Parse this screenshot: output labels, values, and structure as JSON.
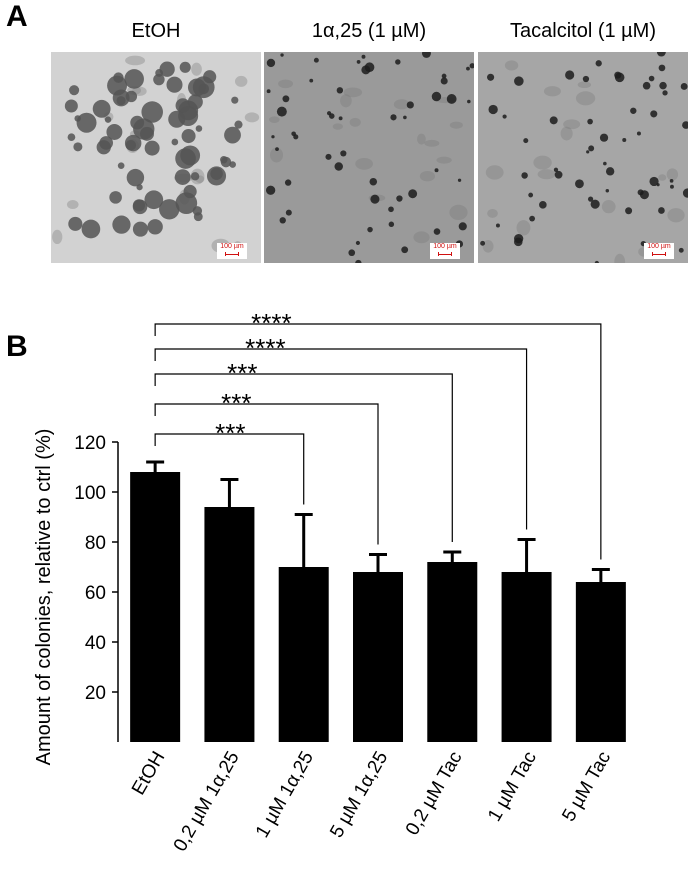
{
  "panel_a": {
    "letter": "A",
    "images": [
      {
        "title": "EtOH",
        "scale_label": "100 µm",
        "background": "#d2d2d2",
        "colony_color": "#555555"
      },
      {
        "title": "1α,25 (1 µM)",
        "scale_label": "100 µm",
        "background": "#9a9a9a",
        "colony_color": "#1c1c1c"
      },
      {
        "title": "Tacalcitol (1 µM)",
        "scale_label": "100 µm",
        "background": "#a6a6a6",
        "colony_color": "#1c1c1c"
      }
    ]
  },
  "panel_b": {
    "letter": "B"
  },
  "chart_data": {
    "type": "bar",
    "categories": [
      "EtOH",
      "0,2 µM 1α,25",
      "1 µM 1α,25",
      "5 µM 1α,25",
      "0,2 µM Tac",
      "1 µM Tac",
      "5 µM Tac"
    ],
    "values": [
      108,
      94,
      70,
      68,
      72,
      68,
      64
    ],
    "error_up": [
      4,
      11,
      21,
      7,
      4,
      13,
      5
    ],
    "title": "",
    "xlabel": "",
    "ylabel": "Amount of colonies, relative to ctrl (%)",
    "ylim": [
      0,
      120
    ],
    "yticks": [
      20,
      40,
      60,
      80,
      100,
      120
    ],
    "grid": false,
    "legend": "none",
    "bar_color": "#000000",
    "significance": [
      {
        "from": "EtOH",
        "to": "1 µM 1α,25",
        "label": "***"
      },
      {
        "from": "EtOH",
        "to": "5 µM 1α,25",
        "label": "***"
      },
      {
        "from": "EtOH",
        "to": "0,2 µM Tac",
        "label": "***"
      },
      {
        "from": "EtOH",
        "to": "1 µM Tac",
        "label": "****"
      },
      {
        "from": "EtOH",
        "to": "5 µM Tac",
        "label": "****"
      }
    ]
  }
}
